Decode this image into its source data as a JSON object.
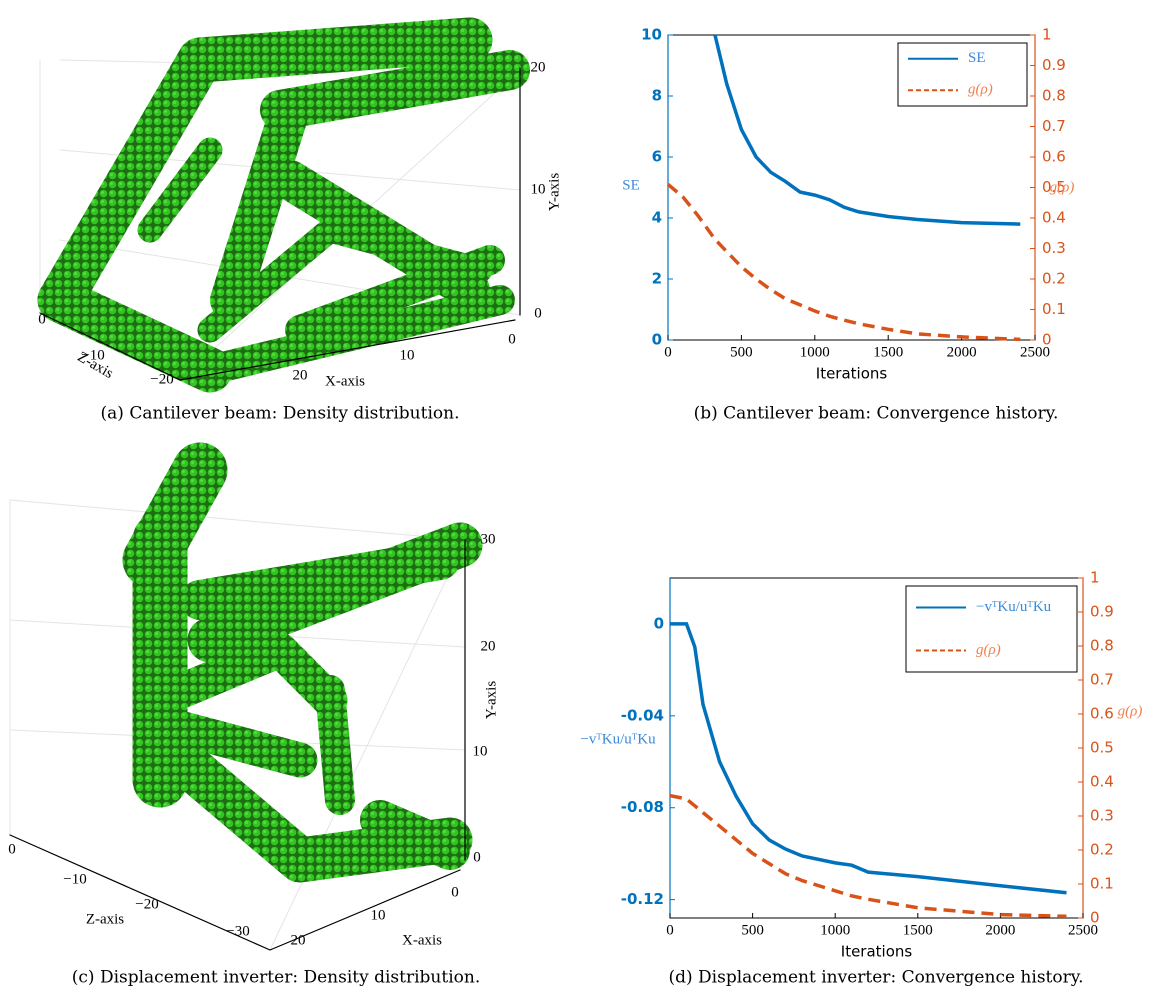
{
  "panels": [
    {
      "caption": "(a) Cantilever beam: Density distribution.",
      "x_label": "X-axis",
      "y_label": "Y-axis",
      "z_label": "Z-axis",
      "x_ticks": [
        "20",
        "10",
        "0"
      ],
      "y_ticks": [
        "20",
        "10",
        "0"
      ],
      "z_ticks": [
        "0",
        "−10",
        "−20"
      ]
    },
    {
      "caption": "(c) Displacement inverter: Density distribution.",
      "x_label": "X-axis",
      "y_label": "Y-axis",
      "z_label": "Z-axis",
      "x_ticks": [
        "20",
        "10",
        "0"
      ],
      "y_ticks": [
        "30",
        "20",
        "10",
        "0"
      ],
      "z_ticks": [
        "0",
        "−10",
        "−20",
        "−30"
      ]
    }
  ],
  "chart_data": [
    {
      "type": "line",
      "caption": "(b) Cantilever beam: Convergence history.",
      "x_label": "Iterations",
      "y_label": "SE",
      "y2_label": "g(ρ)",
      "x": [
        0,
        100,
        200,
        320,
        400,
        500,
        600,
        700,
        800,
        900,
        1000,
        1100,
        1200,
        1300,
        1500,
        1700,
        2000,
        2400
      ],
      "series": [
        {
          "name": "SE",
          "color": "#0072bd",
          "dash": false,
          "values": [
            null,
            null,
            null,
            10,
            8.4,
            6.9,
            6.0,
            5.5,
            5.2,
            4.85,
            4.75,
            4.6,
            4.35,
            4.2,
            4.05,
            3.95,
            3.85,
            3.8
          ]
        },
        {
          "name": "g(ρ)",
          "color": "#d95319",
          "dash": true,
          "axis": "y2",
          "values": [
            0.51,
            0.47,
            0.41,
            0.33,
            0.29,
            0.24,
            0.2,
            0.165,
            0.135,
            0.115,
            0.095,
            0.078,
            0.065,
            0.053,
            0.035,
            0.02,
            0.01,
            0.002
          ]
        }
      ],
      "xlim": [
        0,
        2500
      ],
      "xticks": [
        0,
        500,
        1000,
        1500,
        2000,
        2500
      ],
      "ylim": [
        0,
        10
      ],
      "yticks": [
        0,
        2,
        4,
        6,
        8,
        10
      ],
      "y2lim": [
        0,
        1
      ],
      "y2ticks": [
        0,
        0.1,
        0.2,
        0.3,
        0.4,
        0.5,
        0.6,
        0.7,
        0.8,
        0.9,
        1
      ]
    },
    {
      "type": "line",
      "caption": "(d) Displacement inverter: Convergence history.",
      "x_label": "Iterations",
      "y_label": "−vᵀKu/uᵀKu",
      "y2_label": "g(ρ)",
      "x": [
        0,
        100,
        150,
        200,
        300,
        400,
        500,
        600,
        700,
        800,
        1000,
        1100,
        1200,
        1500,
        2000,
        2400
      ],
      "series": [
        {
          "name": "−vᵀKu/uᵀKu",
          "color": "#0072bd",
          "dash": false,
          "values": [
            0,
            0,
            -0.01,
            -0.035,
            -0.06,
            -0.075,
            -0.087,
            -0.094,
            -0.098,
            -0.101,
            -0.104,
            -0.105,
            -0.108,
            -0.11,
            -0.114,
            -0.117
          ]
        },
        {
          "name": "g(ρ)",
          "color": "#d95319",
          "dash": true,
          "axis": "y2",
          "values": [
            0.36,
            0.35,
            0.33,
            0.31,
            0.27,
            0.23,
            0.19,
            0.16,
            0.13,
            0.11,
            0.08,
            0.065,
            0.055,
            0.03,
            0.01,
            0.005
          ]
        }
      ],
      "xlim": [
        0,
        2500
      ],
      "xticks": [
        0,
        500,
        1000,
        1500,
        2000,
        2500
      ],
      "ylim": [
        -0.128,
        0.02
      ],
      "yticks": [
        -0.12,
        -0.08,
        -0.04,
        0
      ],
      "y2lim": [
        0,
        1
      ],
      "y2ticks": [
        0,
        0.1,
        0.2,
        0.3,
        0.4,
        0.5,
        0.6,
        0.7,
        0.8,
        0.9,
        1
      ]
    }
  ]
}
